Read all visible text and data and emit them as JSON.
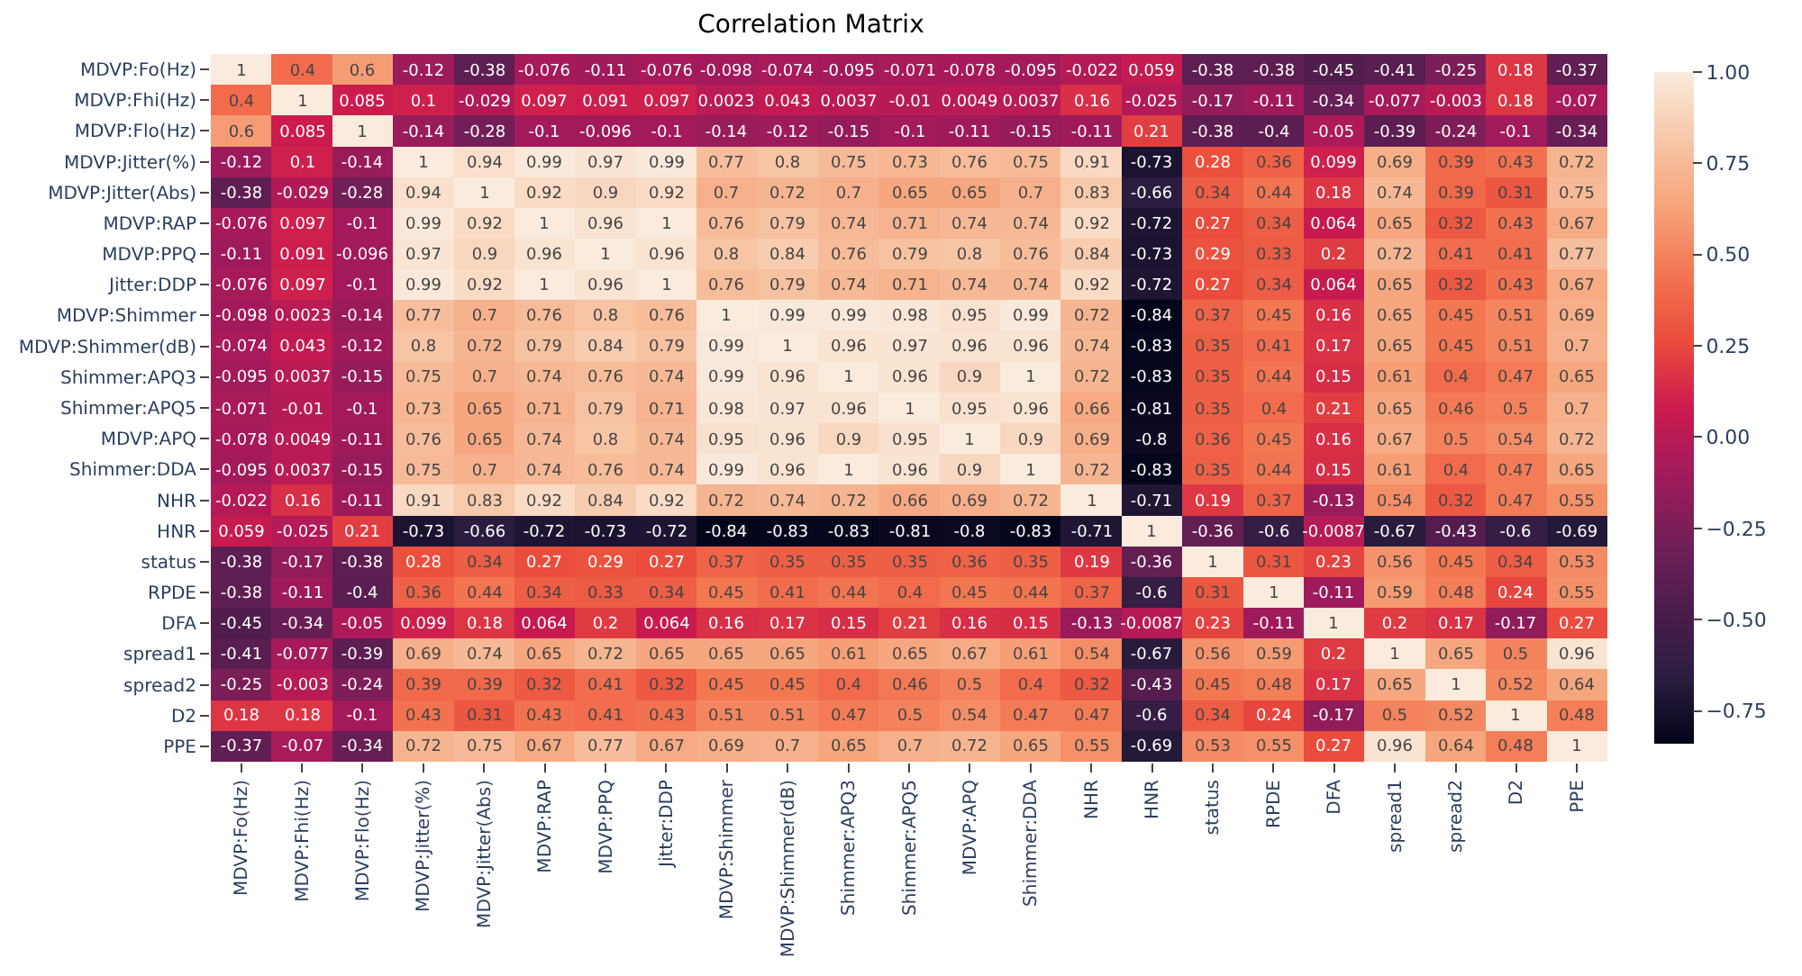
{
  "chart_data": {
    "type": "heatmap",
    "title": "Correlation Matrix",
    "categories": [
      "MDVP:Fo(Hz)",
      "MDVP:Fhi(Hz)",
      "MDVP:Flo(Hz)",
      "MDVP:Jitter(%)",
      "MDVP:Jitter(Abs)",
      "MDVP:RAP",
      "MDVP:PPQ",
      "Jitter:DDP",
      "MDVP:Shimmer",
      "MDVP:Shimmer(dB)",
      "Shimmer:APQ3",
      "Shimmer:APQ5",
      "MDVP:APQ",
      "Shimmer:DDA",
      "NHR",
      "HNR",
      "status",
      "RPDE",
      "DFA",
      "spread1",
      "spread2",
      "D2",
      "PPE"
    ],
    "y_categories": [
      "MDVP:Fo(Hz)",
      "MDVP:Fhi(Hz)",
      "MDVP:Flo(Hz)",
      "MDVP:Jitter(%)",
      "MDVP:Jitter(Abs)",
      "MDVP:RAP",
      "MDVP:PPQ",
      "Jitter:DDP",
      "MDVP:Shimmer",
      "MDVP:Shimmer(dB)",
      "Shimmer:APQ3",
      "Shimmer:APQ5",
      "MDVP:APQ",
      "Shimmer:DDA",
      "NHR",
      "HNR",
      "status",
      "RPDE",
      "DFA",
      "spread1",
      "spread2",
      "D2",
      "PPE"
    ],
    "cells": [
      [
        1,
        0.4,
        0.6,
        -0.12,
        -0.38,
        -0.076,
        -0.11,
        -0.076,
        -0.098,
        -0.074,
        -0.095,
        -0.071,
        -0.078,
        -0.095,
        -0.022,
        0.059,
        -0.38,
        -0.38,
        -0.45,
        -0.41,
        -0.25,
        0.18,
        -0.37
      ],
      [
        0.4,
        1,
        0.085,
        0.1,
        -0.029,
        0.097,
        0.091,
        0.097,
        0.0023,
        0.043,
        0.0037,
        -0.01,
        0.0049,
        0.0037,
        0.16,
        -0.025,
        -0.17,
        -0.11,
        -0.34,
        -0.077,
        -0.003,
        0.18,
        -0.07
      ],
      [
        0.6,
        0.085,
        1,
        -0.14,
        -0.28,
        -0.1,
        -0.096,
        -0.1,
        -0.14,
        -0.12,
        -0.15,
        -0.1,
        -0.11,
        -0.15,
        -0.11,
        0.21,
        -0.38,
        -0.4,
        -0.05,
        -0.39,
        -0.24,
        -0.1,
        -0.34
      ],
      [
        -0.12,
        0.1,
        -0.14,
        1,
        0.94,
        0.99,
        0.97,
        0.99,
        0.77,
        0.8,
        0.75,
        0.73,
        0.76,
        0.75,
        0.91,
        -0.73,
        0.28,
        0.36,
        0.099,
        0.69,
        0.39,
        0.43,
        0.72
      ],
      [
        -0.38,
        -0.029,
        -0.28,
        0.94,
        1,
        0.92,
        0.9,
        0.92,
        0.7,
        0.72,
        0.7,
        0.65,
        0.65,
        0.7,
        0.83,
        -0.66,
        0.34,
        0.44,
        0.18,
        0.74,
        0.39,
        0.31,
        0.75
      ],
      [
        -0.076,
        0.097,
        -0.1,
        0.99,
        0.92,
        1,
        0.96,
        1,
        0.76,
        0.79,
        0.74,
        0.71,
        0.74,
        0.74,
        0.92,
        -0.72,
        0.27,
        0.34,
        0.064,
        0.65,
        0.32,
        0.43,
        0.67
      ],
      [
        -0.11,
        0.091,
        -0.096,
        0.97,
        0.9,
        0.96,
        1,
        0.96,
        0.8,
        0.84,
        0.76,
        0.79,
        0.8,
        0.76,
        0.84,
        -0.73,
        0.29,
        0.33,
        0.2,
        0.72,
        0.41,
        0.41,
        0.77
      ],
      [
        -0.076,
        0.097,
        -0.1,
        0.99,
        0.92,
        1,
        0.96,
        1,
        0.76,
        0.79,
        0.74,
        0.71,
        0.74,
        0.74,
        0.92,
        -0.72,
        0.27,
        0.34,
        0.064,
        0.65,
        0.32,
        0.43,
        0.67
      ],
      [
        -0.098,
        0.0023,
        -0.14,
        0.77,
        0.7,
        0.76,
        0.8,
        0.76,
        1,
        0.99,
        0.99,
        0.98,
        0.95,
        0.99,
        0.72,
        -0.84,
        0.37,
        0.45,
        0.16,
        0.65,
        0.45,
        0.51,
        0.69
      ],
      [
        -0.074,
        0.043,
        -0.12,
        0.8,
        0.72,
        0.79,
        0.84,
        0.79,
        0.99,
        1,
        0.96,
        0.97,
        0.96,
        0.96,
        0.74,
        -0.83,
        0.35,
        0.41,
        0.17,
        0.65,
        0.45,
        0.51,
        0.7
      ],
      [
        -0.095,
        0.0037,
        -0.15,
        0.75,
        0.7,
        0.74,
        0.76,
        0.74,
        0.99,
        0.96,
        1,
        0.96,
        0.9,
        1,
        0.72,
        -0.83,
        0.35,
        0.44,
        0.15,
        0.61,
        0.4,
        0.47,
        0.65
      ],
      [
        -0.071,
        -0.01,
        -0.1,
        0.73,
        0.65,
        0.71,
        0.79,
        0.71,
        0.98,
        0.97,
        0.96,
        1,
        0.95,
        0.96,
        0.66,
        -0.81,
        0.35,
        0.4,
        0.21,
        0.65,
        0.46,
        0.5,
        0.7
      ],
      [
        -0.078,
        0.0049,
        -0.11,
        0.76,
        0.65,
        0.74,
        0.8,
        0.74,
        0.95,
        0.96,
        0.9,
        0.95,
        1,
        0.9,
        0.69,
        -0.8,
        0.36,
        0.45,
        0.16,
        0.67,
        0.5,
        0.54,
        0.72
      ],
      [
        -0.095,
        0.0037,
        -0.15,
        0.75,
        0.7,
        0.74,
        0.76,
        0.74,
        0.99,
        0.96,
        1,
        0.96,
        0.9,
        1,
        0.72,
        -0.83,
        0.35,
        0.44,
        0.15,
        0.61,
        0.4,
        0.47,
        0.65
      ],
      [
        -0.022,
        0.16,
        -0.11,
        0.91,
        0.83,
        0.92,
        0.84,
        0.92,
        0.72,
        0.74,
        0.72,
        0.66,
        0.69,
        0.72,
        1,
        -0.71,
        0.19,
        0.37,
        -0.13,
        0.54,
        0.32,
        0.47,
        0.55
      ],
      [
        0.059,
        -0.025,
        0.21,
        -0.73,
        -0.66,
        -0.72,
        -0.73,
        -0.72,
        -0.84,
        -0.83,
        -0.83,
        -0.81,
        -0.8,
        -0.83,
        -0.71,
        1,
        -0.36,
        -0.6,
        -0.0087,
        -0.67,
        -0.43,
        -0.6,
        -0.69
      ],
      [
        -0.38,
        -0.17,
        -0.38,
        0.28,
        0.34,
        0.27,
        0.29,
        0.27,
        0.37,
        0.35,
        0.35,
        0.35,
        0.36,
        0.35,
        0.19,
        -0.36,
        1,
        0.31,
        0.23,
        0.56,
        0.45,
        0.34,
        0.53
      ],
      [
        -0.38,
        -0.11,
        -0.4,
        0.36,
        0.44,
        0.34,
        0.33,
        0.34,
        0.45,
        0.41,
        0.44,
        0.4,
        0.45,
        0.44,
        0.37,
        -0.6,
        0.31,
        1,
        -0.11,
        0.59,
        0.48,
        0.24,
        0.55
      ],
      [
        -0.45,
        -0.34,
        -0.05,
        0.099,
        0.18,
        0.064,
        0.2,
        0.064,
        0.16,
        0.17,
        0.15,
        0.21,
        0.16,
        0.15,
        -0.13,
        -0.0087,
        0.23,
        -0.11,
        1,
        0.2,
        0.17,
        -0.17,
        0.27
      ],
      [
        -0.41,
        -0.077,
        -0.39,
        0.69,
        0.74,
        0.65,
        0.72,
        0.65,
        0.65,
        0.65,
        0.61,
        0.65,
        0.67,
        0.61,
        0.54,
        -0.67,
        0.56,
        0.59,
        0.2,
        1,
        0.65,
        0.5,
        0.96
      ],
      [
        -0.25,
        -0.003,
        -0.24,
        0.39,
        0.39,
        0.32,
        0.41,
        0.32,
        0.45,
        0.45,
        0.4,
        0.46,
        0.5,
        0.4,
        0.32,
        -0.43,
        0.45,
        0.48,
        0.17,
        0.65,
        1,
        0.52,
        0.64
      ],
      [
        0.18,
        0.18,
        -0.1,
        0.43,
        0.31,
        0.43,
        0.41,
        0.43,
        0.51,
        0.51,
        0.47,
        0.5,
        0.54,
        0.47,
        0.47,
        -0.6,
        0.34,
        0.24,
        -0.17,
        0.5,
        0.52,
        1,
        0.48
      ],
      [
        -0.37,
        -0.07,
        -0.34,
        0.72,
        0.75,
        0.67,
        0.77,
        0.67,
        0.69,
        0.7,
        0.65,
        0.7,
        0.72,
        0.65,
        0.55,
        -0.69,
        0.53,
        0.55,
        0.27,
        0.96,
        0.64,
        0.48,
        1
      ]
    ],
    "clim": [
      -0.84,
      1
    ],
    "cticks": [
      {
        "value": 1,
        "label": "1.00"
      },
      {
        "value": 0.75,
        "label": "0.75"
      },
      {
        "value": 0.5,
        "label": "0.50"
      },
      {
        "value": 0.25,
        "label": "0.25"
      },
      {
        "value": 0,
        "label": "0.00"
      },
      {
        "value": -0.25,
        "label": "−0.25"
      },
      {
        "value": -0.5,
        "label": "−0.50"
      },
      {
        "value": -0.75,
        "label": "−0.75"
      }
    ],
    "data_labels": true
  }
}
